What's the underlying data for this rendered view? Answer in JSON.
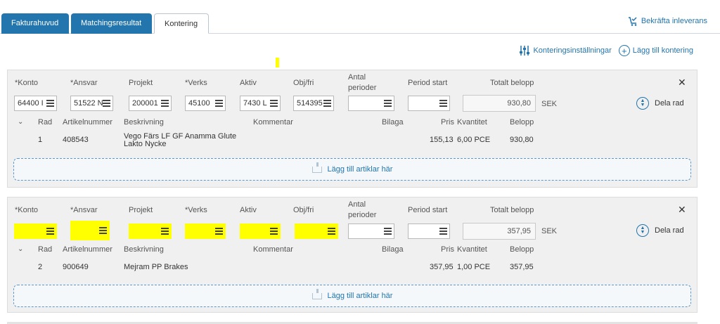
{
  "tabs": [
    {
      "label": "Fakturahuvud"
    },
    {
      "label": "Matchingsresultat"
    },
    {
      "label": "Kontering"
    }
  ],
  "confirm_label": "Bekräfta inleverans",
  "toolbar": {
    "settings_label": "Konteringsinställningar",
    "add_label": "Lägg till kontering"
  },
  "field_labels": {
    "konto": "*Konto",
    "ansvar": "*Ansvar",
    "projekt": "Projekt",
    "verks": "*Verks",
    "aktiv": "Aktiv",
    "objfri": "Obj/fri",
    "antal_line1": "Antal",
    "antal_line2": "perioder",
    "period_start": "Period start",
    "totalt": "Totalt belopp"
  },
  "row_headers": {
    "rad": "Rad",
    "artikel": "Artikelnummer",
    "beskrivning": "Beskrivning",
    "kommentar": "Kommentar",
    "bilaga": "Bilaga",
    "pris": "Pris",
    "kvantitet": "Kvantitet",
    "belopp": "Belopp"
  },
  "split_label": "Dela rad",
  "drop_label": "Lägg till artiklar här",
  "currency": "SEK",
  "postings": [
    {
      "fields": {
        "konto": "64400 I",
        "ansvar": "51522 N",
        "projekt": "200001",
        "verks": "45100",
        "aktiv": "7430 L",
        "objfri": "514395",
        "antal": "",
        "period_start": ""
      },
      "total": "930,80",
      "row": {
        "rad": "1",
        "artikel": "408543",
        "beskrivning_1": "Vego Färs LF GF Anamma Glute",
        "beskrivning_2": "Lakto Nycke",
        "kommentar": "",
        "bilaga": "",
        "pris": "155,13",
        "kvantitet": "6,00 PCE",
        "belopp": "930,80"
      }
    },
    {
      "fields": {
        "konto": "",
        "ansvar": "",
        "projekt": "",
        "verks": "",
        "aktiv": "",
        "objfri": "",
        "antal": "",
        "period_start": ""
      },
      "total": "357,95",
      "row": {
        "rad": "2",
        "artikel": "900649",
        "beskrivning_1": "Mejram PP Brakes",
        "beskrivning_2": "",
        "kommentar": "",
        "bilaga": "",
        "pris": "357,95",
        "kvantitet": "1,00 PCE",
        "belopp": "357,95"
      }
    }
  ],
  "colors": {
    "accent": "#2275ad",
    "highlight": "#ffff00",
    "panel": "#f0f0f0"
  }
}
